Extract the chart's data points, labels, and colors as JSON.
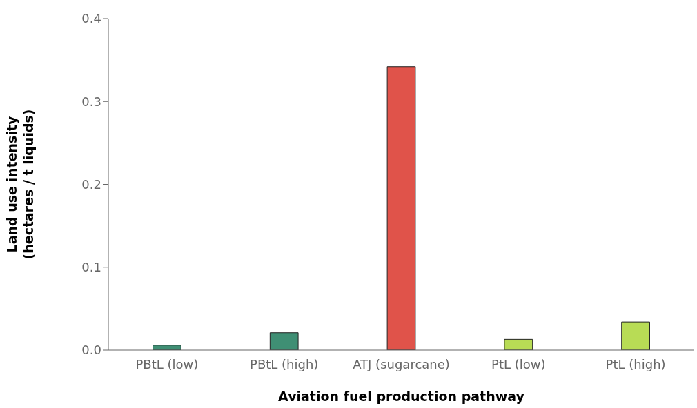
{
  "chart_data": {
    "type": "bar",
    "xlabel": "Aviation fuel production pathway",
    "ylabel": "Land use intensity\n(hectares / t liquids)",
    "categories": [
      "PBtL (low)",
      "PBtL (high)",
      "ATJ (sugarcane)",
      "PtL (low)",
      "PtL (high)"
    ],
    "values": [
      0.006,
      0.021,
      0.342,
      0.013,
      0.034
    ],
    "colors": [
      "#3f8f74",
      "#3f8f74",
      "#e0534a",
      "#b8dc55",
      "#b8dc55"
    ],
    "ylim": [
      0,
      0.4
    ],
    "yticks": [
      {
        "value": 0,
        "label": "0.0"
      },
      {
        "value": 0.1,
        "label": "0.1"
      },
      {
        "value": 0.2,
        "label": "0.2"
      },
      {
        "value": 0.3,
        "label": "0.3"
      },
      {
        "value": 0.4,
        "label": "0.4"
      }
    ],
    "grid": false,
    "legend": false
  }
}
